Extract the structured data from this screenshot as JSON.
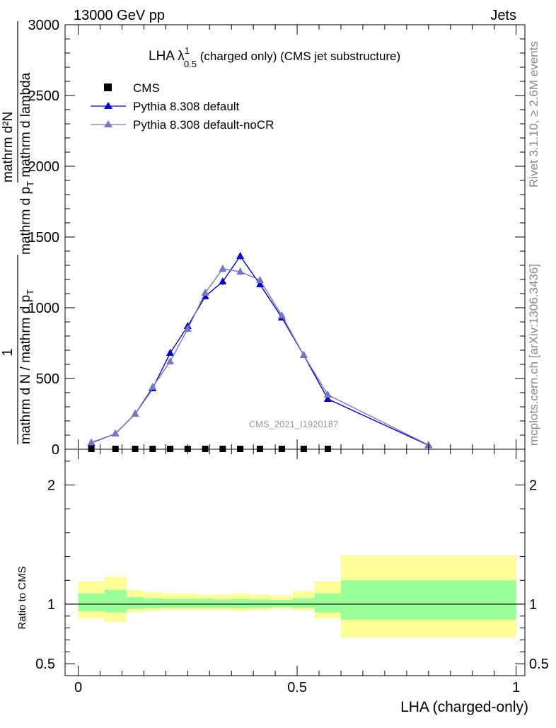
{
  "header": {
    "left": "13000 GeV pp",
    "right": "Jets",
    "side_rivet": "Rivet 3.1.10, ≥ 2.6M events",
    "side_mcplots": "mcplots.cern.ch [arXiv:1306.3436]",
    "watermark": "CMS_2021_I1920187"
  },
  "main_title": {
    "prefix": "LHA λ",
    "superscript": "1",
    "subscript": "0.5",
    "suffix": " (charged only) (CMS jet substructure)"
  },
  "ylabel_main": {
    "line1": "mathrm d²N",
    "line2": "mathrm d p",
    "line2_sub": "T",
    "line2_rest": " mathrm d lambda",
    "one": "1",
    "denominator": "mathrm d N / mathrm d p",
    "denominator_sub": "T"
  },
  "ylabel_ratio": "Ratio to CMS",
  "xlabel": "LHA (charged-only)",
  "legend": [
    {
      "name": "CMS",
      "color": "#000000",
      "marker": "square"
    },
    {
      "name": "Pythia 8.308 default",
      "color": "#0000cc",
      "marker": "triangle"
    },
    {
      "name": "Pythia 8.308 default-noCR",
      "color": "#7777bb",
      "marker": "triangle"
    }
  ],
  "chart_data": [
    {
      "type": "line",
      "xlim": [
        -0.03,
        1.02
      ],
      "ylim": [
        0,
        3000
      ],
      "yticks": [
        0,
        500,
        1000,
        1500,
        2000,
        2500,
        3000
      ],
      "ytick_labels": [
        "0",
        "500",
        "1000",
        "1500",
        "2000",
        "2500",
        "3000"
      ],
      "series": [
        {
          "name": "CMS",
          "color": "#000000",
          "x": [
            0.03,
            0.085,
            0.13,
            0.17,
            0.21,
            0.25,
            0.29,
            0.33,
            0.37,
            0.415,
            0.465,
            0.515,
            0.57
          ],
          "values": [
            0,
            0,
            0,
            0,
            0,
            0,
            0,
            0,
            0,
            0,
            0,
            0,
            0
          ]
        },
        {
          "name": "Pythia 8.308 default",
          "color": "#0000cc",
          "x": [
            0.03,
            0.085,
            0.13,
            0.17,
            0.21,
            0.25,
            0.29,
            0.33,
            0.37,
            0.415,
            0.465,
            0.515,
            0.57,
            0.8
          ],
          "values": [
            45,
            110,
            250,
            430,
            680,
            870,
            1080,
            1185,
            1365,
            1165,
            930,
            665,
            355,
            28
          ],
          "errors": [
            5,
            8,
            12,
            15,
            20,
            20,
            22,
            25,
            28,
            22,
            18,
            15,
            10,
            5
          ]
        },
        {
          "name": "Pythia 8.308 default-noCR",
          "color": "#7777bb",
          "x": [
            0.03,
            0.085,
            0.13,
            0.17,
            0.21,
            0.25,
            0.29,
            0.33,
            0.37,
            0.415,
            0.465,
            0.515,
            0.57,
            0.8
          ],
          "values": [
            48,
            110,
            250,
            440,
            620,
            850,
            1105,
            1275,
            1255,
            1195,
            945,
            665,
            385,
            30
          ],
          "errors": [
            5,
            8,
            12,
            15,
            20,
            20,
            22,
            25,
            25,
            22,
            18,
            15,
            10,
            5
          ]
        }
      ]
    },
    {
      "type": "area",
      "ylim": [
        0.4,
        2.3
      ],
      "yticks": [
        0.5,
        1,
        2
      ],
      "ytick_labels": [
        "0.5",
        "1",
        "2"
      ],
      "xticks": [
        0,
        0.5,
        1
      ],
      "xtick_labels": [
        "0",
        "0.5",
        "1"
      ],
      "bin_edges": [
        0,
        0.06,
        0.11,
        0.15,
        0.19,
        0.23,
        0.27,
        0.31,
        0.35,
        0.39,
        0.44,
        0.49,
        0.54,
        0.6,
        1.0
      ],
      "band_outer_low": [
        0.88,
        0.85,
        0.93,
        0.94,
        0.95,
        0.95,
        0.95,
        0.95,
        0.94,
        0.95,
        0.96,
        0.95,
        0.88,
        0.72
      ],
      "band_outer_high": [
        1.19,
        1.23,
        1.12,
        1.1,
        1.09,
        1.09,
        1.08,
        1.08,
        1.09,
        1.08,
        1.07,
        1.11,
        1.19,
        1.41
      ],
      "band_inner_low": [
        0.94,
        0.93,
        0.96,
        0.965,
        0.97,
        0.97,
        0.97,
        0.97,
        0.965,
        0.97,
        0.975,
        0.97,
        0.93,
        0.87
      ],
      "band_inner_high": [
        1.09,
        1.12,
        1.06,
        1.05,
        1.045,
        1.045,
        1.045,
        1.04,
        1.045,
        1.04,
        1.035,
        1.05,
        1.09,
        1.2
      ],
      "reference": 1
    }
  ]
}
